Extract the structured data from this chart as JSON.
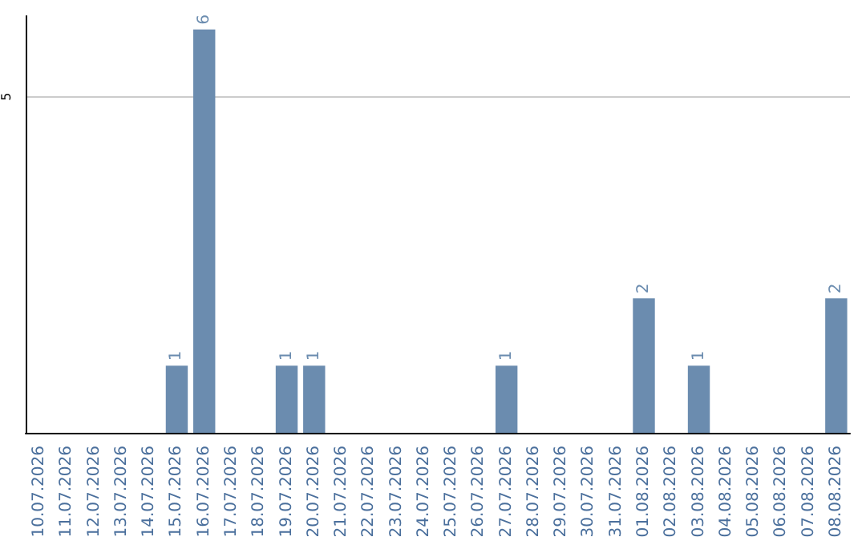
{
  "chart_data": {
    "type": "bar",
    "categories": [
      "10.07.2026",
      "11.07.2026",
      "12.07.2026",
      "13.07.2026",
      "14.07.2026",
      "15.07.2026",
      "16.07.2026",
      "17.07.2026",
      "18.07.2026",
      "19.07.2026",
      "20.07.2026",
      "21.07.2026",
      "22.07.2026",
      "23.07.2026",
      "24.07.2026",
      "25.07.2026",
      "26.07.2026",
      "27.07.2026",
      "28.07.2026",
      "29.07.2026",
      "30.07.2026",
      "31.07.2026",
      "01.08.2026",
      "02.08.2026",
      "03.08.2026",
      "04.08.2026",
      "05.08.2026",
      "06.08.2026",
      "07.08.2026",
      "08.08.2026"
    ],
    "values": [
      0,
      0,
      0,
      0,
      0,
      1,
      6,
      0,
      0,
      1,
      1,
      0,
      0,
      0,
      0,
      0,
      0,
      1,
      0,
      0,
      0,
      0,
      2,
      0,
      1,
      0,
      0,
      0,
      0,
      2
    ],
    "value_labels": [
      null,
      null,
      null,
      null,
      null,
      "1",
      "6",
      null,
      null,
      "1",
      "1",
      null,
      null,
      null,
      null,
      null,
      null,
      "1",
      null,
      null,
      null,
      null,
      "2",
      null,
      "1",
      null,
      null,
      null,
      null,
      "2"
    ],
    "color": "#6b8caf",
    "ylim": [
      0,
      6.2
    ],
    "yticks": [
      5
    ],
    "grid": "y"
  }
}
